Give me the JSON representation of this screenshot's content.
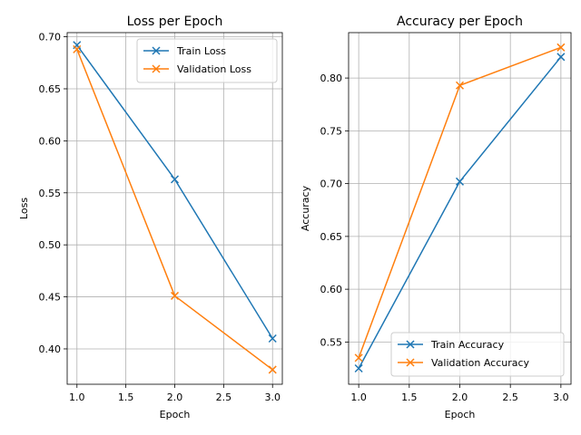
{
  "chart_data": [
    {
      "type": "line",
      "title": "Loss per Epoch",
      "xlabel": "Epoch",
      "ylabel": "Loss",
      "x": [
        1,
        2,
        3
      ],
      "xlim": [
        0.9,
        3.1
      ],
      "ylim": [
        0.366,
        0.704
      ],
      "xticks": [
        1.0,
        1.5,
        2.0,
        2.5,
        3.0
      ],
      "xtick_labels": [
        "1.0",
        "1.5",
        "2.0",
        "2.5",
        "3.0"
      ],
      "yticks": [
        0.4,
        0.45,
        0.5,
        0.55,
        0.6,
        0.65,
        0.7
      ],
      "ytick_labels": [
        "0.40",
        "0.45",
        "0.50",
        "0.55",
        "0.60",
        "0.65",
        "0.70"
      ],
      "grid": true,
      "legend_position": "top-right",
      "marker": "x",
      "series": [
        {
          "name": "Train Loss",
          "values": [
            0.692,
            0.563,
            0.41
          ],
          "color": "#1f77b4"
        },
        {
          "name": "Validation Loss",
          "values": [
            0.688,
            0.451,
            0.38
          ],
          "color": "#ff7f0e"
        }
      ]
    },
    {
      "type": "line",
      "title": "Accuracy per Epoch",
      "xlabel": "Epoch",
      "ylabel": "Accuracy",
      "x": [
        1,
        2,
        3
      ],
      "xlim": [
        0.9,
        3.1
      ],
      "ylim": [
        0.51,
        0.843
      ],
      "xticks": [
        1.0,
        1.5,
        2.0,
        2.5,
        3.0
      ],
      "xtick_labels": [
        "1.0",
        "1.5",
        "2.0",
        "2.5",
        "3.0"
      ],
      "yticks": [
        0.55,
        0.6,
        0.65,
        0.7,
        0.75,
        0.8
      ],
      "ytick_labels": [
        "0.55",
        "0.60",
        "0.65",
        "0.70",
        "0.75",
        "0.80"
      ],
      "grid": true,
      "legend_position": "bottom-right",
      "marker": "x",
      "series": [
        {
          "name": "Train Accuracy",
          "values": [
            0.525,
            0.702,
            0.82
          ],
          "color": "#1f77b4"
        },
        {
          "name": "Validation Accuracy",
          "values": [
            0.535,
            0.793,
            0.829
          ],
          "color": "#ff7f0e"
        }
      ]
    }
  ]
}
